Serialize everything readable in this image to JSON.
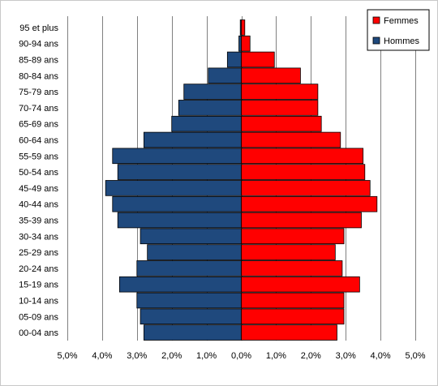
{
  "chart_data": {
    "type": "bar",
    "orientation": "horizontal",
    "layout": "population-pyramid",
    "categories": [
      "00-04 ans",
      "05-09 ans",
      "10-14 ans",
      "15-19 ans",
      "20-24 ans",
      "25-29 ans",
      "30-34 ans",
      "35-39 ans",
      "40-44 ans",
      "45-49 ans",
      "50-54 ans",
      "55-59 ans",
      "60-64 ans",
      "65-69 ans",
      "70-74 ans",
      "75-79 ans",
      "80-84 ans",
      "85-89 ans",
      "90-94 ans",
      "95 et plus"
    ],
    "series": [
      {
        "name": "Hommes",
        "color": "#1f497d",
        "side": "left",
        "values": [
          2.8,
          2.9,
          3.0,
          3.5,
          3.0,
          2.7,
          2.9,
          3.55,
          3.7,
          3.9,
          3.55,
          3.7,
          2.8,
          2.0,
          1.8,
          1.65,
          0.95,
          0.4,
          0.07,
          0.03
        ]
      },
      {
        "name": "Femmes",
        "color": "#ff0000",
        "side": "right",
        "values": [
          2.75,
          2.95,
          2.95,
          3.4,
          2.9,
          2.7,
          2.95,
          3.45,
          3.9,
          3.7,
          3.55,
          3.5,
          2.85,
          2.3,
          2.2,
          2.2,
          1.7,
          0.95,
          0.25,
          0.1
        ]
      }
    ],
    "x_ticks": [
      "5,0%",
      "4,0%",
      "3,0%",
      "2,0%",
      "1,0%",
      "0,0%",
      "1,0%",
      "2,0%",
      "3,0%",
      "4,0%",
      "5,0%"
    ],
    "xlim": [
      -5,
      5
    ],
    "x_unit": "%",
    "grid": "vertical",
    "legend_position": "top-right",
    "title": "",
    "xlabel": "",
    "ylabel": ""
  },
  "colors": {
    "hommes": "#1f497d",
    "femmes": "#ff0000",
    "gridline": "#808080",
    "bar_outline": "#000000"
  }
}
